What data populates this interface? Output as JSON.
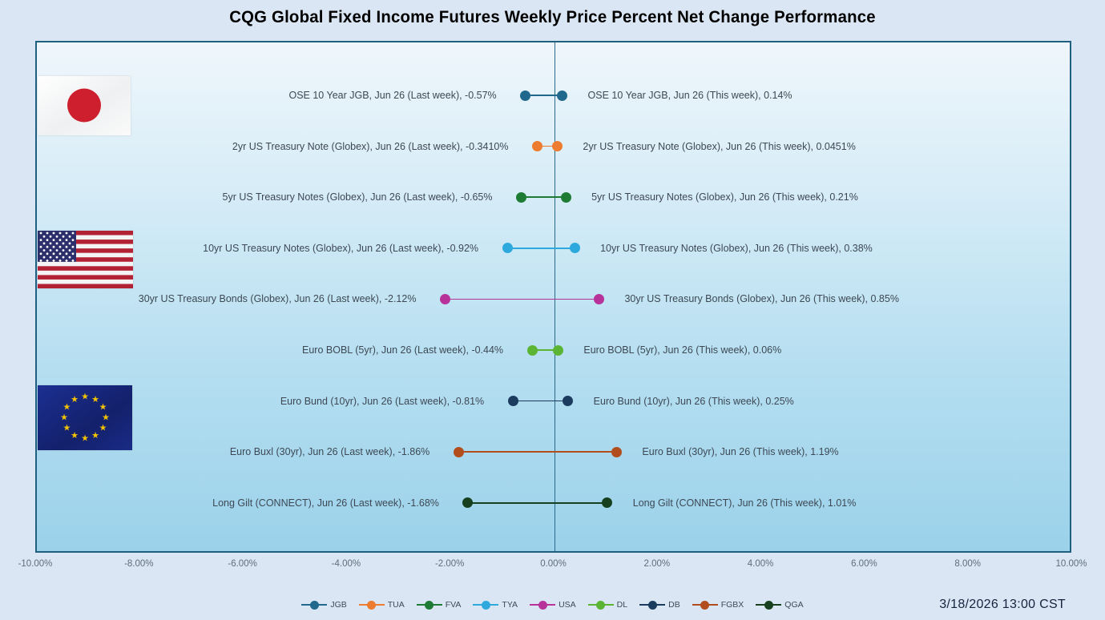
{
  "title": "CQG Global Fixed Income Futures Weekly Price Percent Net Change Performance",
  "timestamp": "3/18/2026 13:00 CST",
  "colors": {
    "page_background": "#dae6f3",
    "plot_border": "#1f5f80",
    "plot_gradient_top": "#eff6fb",
    "plot_gradient_bottom": "#9bd2ea",
    "label_text": "#3d4854",
    "axis_text": "#5f6e7a"
  },
  "flags": [
    {
      "name": "japan-flag"
    },
    {
      "name": "us-flag"
    },
    {
      "name": "eu-flag"
    }
  ],
  "chart_data": {
    "type": "dumbbell",
    "title": "CQG Global Fixed Income Futures Weekly Price Percent Net Change Performance",
    "x_axis": {
      "min": -10,
      "max": 10,
      "tick_step": 2,
      "tick_labels": [
        "-10.00%",
        "-8.00%",
        "-6.00%",
        "-4.00%",
        "-2.00%",
        "0.00%",
        "2.00%",
        "4.00%",
        "6.00%",
        "8.00%",
        "10.00%"
      ],
      "grid": false
    },
    "legend_position": "bottom",
    "series": [
      {
        "ticker": "JGB",
        "instrument": "OSE 10 Year JGB, Jun 26",
        "last_week": -0.57,
        "this_week": 0.14,
        "last_week_label": "OSE 10 Year JGB, Jun 26 (Last week), -0.57%",
        "this_week_label": "OSE 10 Year JGB, Jun 26 (This week), 0.14%",
        "color": "#20688C"
      },
      {
        "ticker": "TUA",
        "instrument": "2yr US Treasury Note (Globex), Jun 26",
        "last_week": -0.341,
        "this_week": 0.0451,
        "last_week_label": "2yr US Treasury Note (Globex), Jun 26 (Last week), -0.3410%",
        "this_week_label": "2yr US Treasury Note (Globex), Jun 26 (This week), 0.0451%",
        "color": "#ED7B30"
      },
      {
        "ticker": "FVA",
        "instrument": "5yr US Treasury Notes (Globex), Jun 26",
        "last_week": -0.65,
        "this_week": 0.21,
        "last_week_label": "5yr US Treasury Notes (Globex), Jun 26 (Last week), -0.65%",
        "this_week_label": "5yr US Treasury Notes (Globex), Jun 26 (This week), 0.21%",
        "color": "#1E7B34"
      },
      {
        "ticker": "TYA",
        "instrument": "10yr US Treasury Notes (Globex), Jun 26",
        "last_week": -0.92,
        "this_week": 0.38,
        "last_week_label": "10yr US Treasury Notes (Globex), Jun 26 (Last week), -0.92%",
        "this_week_label": "10yr US Treasury Notes (Globex), Jun 26 (This week), 0.38%",
        "color": "#2EA9DE"
      },
      {
        "ticker": "USA",
        "instrument": "30yr US Treasury Bonds (Globex), Jun 26",
        "last_week": -2.12,
        "this_week": 0.85,
        "last_week_label": "30yr US Treasury Bonds (Globex), Jun 26 (Last week), -2.12%",
        "this_week_label": "30yr US Treasury Bonds (Globex), Jun 26 (This week), 0.85%",
        "color": "#B73299"
      },
      {
        "ticker": "DL",
        "instrument": "Euro BOBL (5yr), Jun 26",
        "last_week": -0.44,
        "this_week": 0.06,
        "last_week_label": "Euro BOBL (5yr), Jun 26 (Last week), -0.44%",
        "this_week_label": "Euro BOBL (5yr), Jun 26 (This week), 0.06%",
        "color": "#5CB434"
      },
      {
        "ticker": "DB",
        "instrument": "Euro Bund (10yr), Jun 26",
        "last_week": -0.81,
        "this_week": 0.25,
        "last_week_label": "Euro Bund (10yr), Jun 26 (Last week), -0.81%",
        "this_week_label": "Euro Bund (10yr), Jun 26 (This week), 0.25%",
        "color": "#1B3C5F"
      },
      {
        "ticker": "FGBX",
        "instrument": "Euro Buxl (30yr), Jun 26",
        "last_week": -1.86,
        "this_week": 1.19,
        "last_week_label": "Euro Buxl (30yr), Jun 26 (Last week), -1.86%",
        "this_week_label": "Euro Buxl (30yr), Jun 26 (This week), 1.19%",
        "color": "#B24E1D"
      },
      {
        "ticker": "QGA",
        "instrument": "Long Gilt (CONNECT), Jun 26",
        "last_week": -1.68,
        "this_week": 1.01,
        "last_week_label": "Long Gilt (CONNECT), Jun 26 (Last week), -1.68%",
        "this_week_label": "Long Gilt (CONNECT), Jun 26 (This week), 1.01%",
        "color": "#16401E"
      }
    ]
  }
}
